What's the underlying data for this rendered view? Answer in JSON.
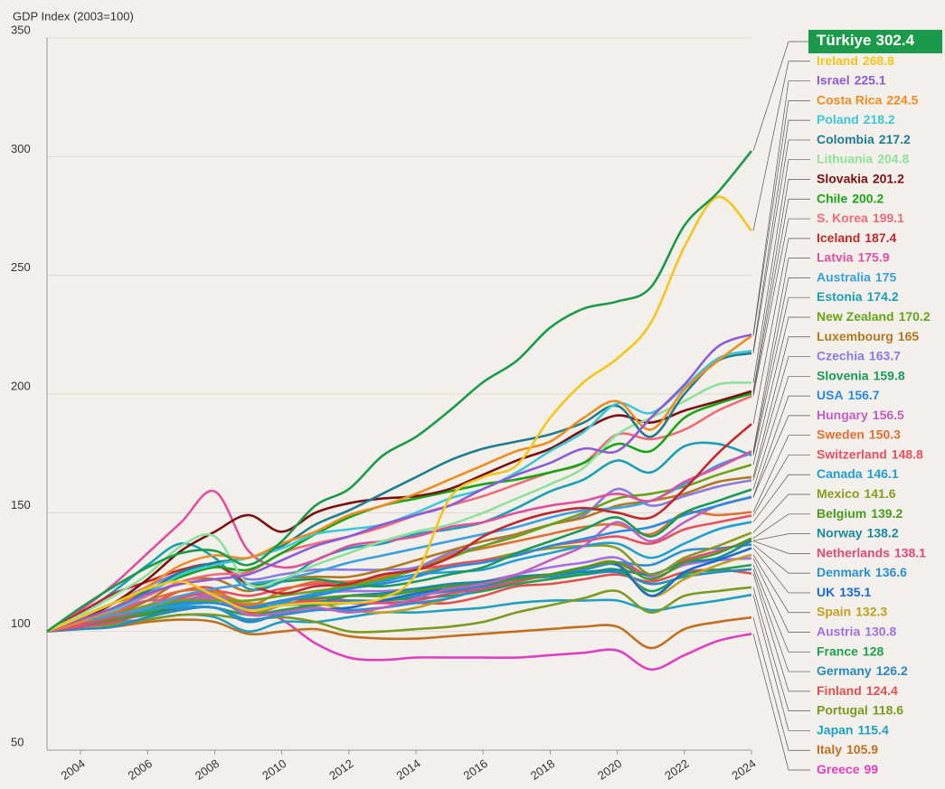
{
  "chart_data": {
    "type": "line",
    "y_axis_label": "GDP Index (2003=100)",
    "x": [
      2003,
      2004,
      2005,
      2006,
      2007,
      2008,
      2009,
      2010,
      2011,
      2012,
      2013,
      2014,
      2015,
      2016,
      2017,
      2018,
      2019,
      2020,
      2021,
      2022,
      2023,
      2024
    ],
    "xlim": [
      2003,
      2024
    ],
    "xticks": [
      2004,
      2006,
      2008,
      2010,
      2012,
      2014,
      2016,
      2018,
      2020,
      2022,
      2024
    ],
    "ylim": [
      50,
      350
    ],
    "yticks": [
      50,
      100,
      150,
      200,
      250,
      300,
      350
    ],
    "grid": true,
    "series": [
      {
        "name": "Türkiye",
        "color": "#1a9a4a",
        "values": [
          100,
          110,
          119,
          127,
          133,
          134,
          128,
          138,
          153,
          160,
          174,
          182,
          193,
          205,
          214,
          228,
          236,
          239,
          245,
          271,
          285,
          302.4
        ]
      },
      {
        "name": "Ireland",
        "color": "#f5c518",
        "values": [
          100,
          106,
          112,
          118,
          121,
          115,
          109,
          111,
          112,
          112,
          114,
          124,
          156,
          165,
          170,
          190,
          205,
          215,
          230,
          262,
          283,
          268.8
        ]
      },
      {
        "name": "Israel",
        "color": "#8e5bd6",
        "values": [
          100,
          105,
          110,
          116,
          120,
          122,
          124,
          130,
          136,
          140,
          145,
          149,
          153,
          160,
          166,
          171,
          177,
          176,
          190,
          204,
          220,
          225.1
        ]
      },
      {
        "name": "Costa Rica",
        "color": "#f08c1e",
        "values": [
          100,
          104,
          110,
          119,
          128,
          132,
          131,
          137,
          142,
          149,
          153,
          158,
          164,
          170,
          176,
          180,
          190,
          197,
          185,
          202,
          214,
          224.5
        ]
      },
      {
        "name": "Poland",
        "color": "#3dc6d6",
        "values": [
          100,
          105,
          109,
          116,
          124,
          128,
          131,
          135,
          141,
          143,
          145,
          150,
          156,
          160,
          167,
          176,
          184,
          196,
          192,
          203,
          215,
          218.2
        ]
      },
      {
        "name": "Colombia",
        "color": "#1f7d8f",
        "values": [
          100,
          105,
          110,
          117,
          125,
          129,
          131,
          136,
          145,
          151,
          158,
          165,
          172,
          177,
          180,
          183,
          188,
          195,
          182,
          200,
          214,
          217.2
        ]
      },
      {
        "name": "Lithuania",
        "color": "#8ee09a",
        "values": [
          100,
          107,
          115,
          124,
          136,
          140,
          120,
          122,
          128,
          133,
          138,
          142,
          145,
          150,
          156,
          162,
          169,
          183,
          190,
          197,
          204,
          204.8
        ]
      },
      {
        "name": "Slovakia",
        "color": "#7a1010",
        "values": [
          100,
          105,
          112,
          122,
          134,
          142,
          149,
          142,
          150,
          154,
          156,
          157,
          160,
          166,
          172,
          177,
          185,
          191,
          188,
          193,
          197,
          201.2
        ]
      },
      {
        "name": "Chile",
        "color": "#16a616",
        "values": [
          100,
          106,
          112,
          117,
          123,
          127,
          126,
          133,
          141,
          148,
          153,
          156,
          159,
          162,
          164,
          167,
          171,
          179,
          176,
          190,
          196,
          200.2
        ]
      },
      {
        "name": "S. Korea",
        "color": "#f06a7a",
        "values": [
          100,
          105,
          109,
          115,
          121,
          124,
          125,
          133,
          137,
          140,
          144,
          149,
          153,
          157,
          162,
          167,
          171,
          183,
          181,
          185,
          193,
          199.1
        ]
      },
      {
        "name": "Iceland",
        "color": "#c0282e",
        "values": [
          100,
          108,
          116,
          121,
          126,
          128,
          120,
          116,
          119,
          120,
          124,
          126,
          131,
          140,
          146,
          150,
          152,
          150,
          148,
          160,
          175,
          187.4
        ]
      },
      {
        "name": "Latvia",
        "color": "#e0509e",
        "values": [
          100,
          109,
          120,
          133,
          146,
          159,
          134,
          127,
          130,
          136,
          138,
          140,
          144,
          146,
          150,
          153,
          155,
          158,
          155,
          163,
          169,
          175.9
        ]
      },
      {
        "name": "Australia",
        "color": "#3aa0e0",
        "values": [
          100,
          104,
          107,
          110,
          115,
          118,
          120,
          122,
          125,
          129,
          132,
          135,
          138,
          141,
          144,
          148,
          151,
          152,
          155,
          162,
          170,
          175
        ]
      },
      {
        "name": "Estonia",
        "color": "#1a9fb5",
        "values": [
          100,
          107,
          117,
          128,
          137,
          131,
          118,
          121,
          130,
          135,
          137,
          141,
          143,
          146,
          152,
          159,
          164,
          172,
          167,
          178,
          179,
          174.2
        ]
      },
      {
        "name": "New Zealand",
        "color": "#6aa31a",
        "values": [
          100,
          104,
          107,
          110,
          113,
          113,
          113,
          115,
          117,
          119,
          122,
          126,
          131,
          136,
          140,
          145,
          150,
          156,
          158,
          161,
          166,
          170.2
        ]
      },
      {
        "name": "Luxembourg",
        "color": "#b07820",
        "values": [
          100,
          104,
          107,
          113,
          121,
          122,
          117,
          122,
          123,
          123,
          126,
          130,
          134,
          138,
          141,
          145,
          148,
          153,
          155,
          158,
          163,
          165
        ]
      },
      {
        "name": "Czechia",
        "color": "#8a7be0",
        "values": [
          100,
          105,
          112,
          119,
          125,
          128,
          122,
          124,
          126,
          126,
          126,
          127,
          133,
          136,
          141,
          145,
          149,
          160,
          153,
          157,
          161,
          163.7
        ]
      },
      {
        "name": "Slovenia",
        "color": "#1a9a5a",
        "values": [
          100,
          105,
          110,
          116,
          124,
          128,
          120,
          121,
          122,
          120,
          119,
          121,
          124,
          127,
          133,
          138,
          143,
          148,
          140,
          150,
          155,
          159.8
        ]
      },
      {
        "name": "USA",
        "color": "#2a8ae0",
        "values": [
          100,
          104,
          107,
          110,
          112,
          112,
          110,
          113,
          115,
          118,
          120,
          123,
          127,
          129,
          132,
          136,
          139,
          142,
          144,
          149,
          153,
          156.7
        ]
      },
      {
        "name": "Hungary",
        "color": "#c060c0",
        "values": [
          100,
          105,
          109,
          113,
          113,
          114,
          107,
          108,
          110,
          108,
          110,
          114,
          118,
          120,
          124,
          130,
          136,
          146,
          138,
          146,
          153,
          156.5
        ]
      },
      {
        "name": "Sweden",
        "color": "#e07030",
        "values": [
          100,
          105,
          108,
          113,
          117,
          117,
          111,
          117,
          121,
          121,
          123,
          126,
          132,
          135,
          138,
          141,
          144,
          145,
          141,
          150,
          149,
          150.3
        ]
      },
      {
        "name": "Switzerland",
        "color": "#e85060",
        "values": [
          100,
          103,
          106,
          110,
          114,
          117,
          115,
          118,
          120,
          121,
          123,
          126,
          128,
          130,
          132,
          136,
          138,
          140,
          137,
          143,
          146,
          148.8
        ]
      },
      {
        "name": "Canada",
        "color": "#20a0d0",
        "values": [
          100,
          103,
          106,
          109,
          111,
          112,
          109,
          112,
          116,
          118,
          121,
          124,
          125,
          126,
          130,
          133,
          136,
          137,
          131,
          137,
          143,
          146.1
        ]
      },
      {
        "name": "Mexico",
        "color": "#8a9a20",
        "values": [
          100,
          104,
          106,
          111,
          113,
          114,
          107,
          112,
          116,
          120,
          122,
          124,
          128,
          130,
          133,
          135,
          136,
          135,
          124,
          131,
          136,
          141.6
        ]
      },
      {
        "name": "Belgium",
        "color": "#4a9a20",
        "values": [
          100,
          103,
          105,
          108,
          111,
          112,
          110,
          113,
          114,
          115,
          115,
          117,
          119,
          120,
          122,
          124,
          127,
          129,
          122,
          129,
          133,
          139.2
        ]
      },
      {
        "name": "Norway",
        "color": "#1a8aa0",
        "values": [
          100,
          104,
          107,
          109,
          112,
          112,
          110,
          111,
          112,
          115,
          116,
          118,
          120,
          121,
          123,
          124,
          125,
          126,
          124,
          129,
          131,
          138.2
        ]
      },
      {
        "name": "Netherlands",
        "color": "#e04a7a",
        "values": [
          100,
          102,
          104,
          108,
          112,
          114,
          110,
          111,
          113,
          112,
          112,
          113,
          116,
          118,
          121,
          124,
          127,
          129,
          124,
          130,
          134,
          138.1
        ]
      },
      {
        "name": "Denmark",
        "color": "#2a90d0",
        "values": [
          100,
          103,
          105,
          109,
          110,
          110,
          105,
          107,
          109,
          109,
          110,
          112,
          114,
          118,
          121,
          124,
          126,
          129,
          128,
          134,
          135,
          136.6
        ]
      },
      {
        "name": "UK",
        "color": "#1a6ad0",
        "values": [
          100,
          102,
          105,
          108,
          110,
          110,
          105,
          107,
          109,
          110,
          113,
          116,
          118,
          120,
          123,
          124,
          126,
          128,
          115,
          125,
          130,
          135.1
        ]
      },
      {
        "name": "Spain",
        "color": "#c0a020",
        "values": [
          100,
          103,
          107,
          111,
          115,
          116,
          112,
          112,
          112,
          109,
          108,
          110,
          114,
          118,
          121,
          124,
          127,
          129,
          115,
          122,
          128,
          132.3
        ]
      },
      {
        "name": "Austria",
        "color": "#a070e0",
        "values": [
          100,
          103,
          105,
          109,
          113,
          115,
          111,
          113,
          116,
          117,
          117,
          118,
          119,
          121,
          124,
          127,
          129,
          131,
          123,
          128,
          130,
          130.8
        ]
      },
      {
        "name": "France",
        "color": "#20a050",
        "values": [
          100,
          103,
          105,
          107,
          110,
          110,
          107,
          109,
          111,
          112,
          113,
          114,
          115,
          117,
          120,
          122,
          124,
          126,
          117,
          124,
          126,
          128
        ]
      },
      {
        "name": "Germany",
        "color": "#2a8ac0",
        "values": [
          100,
          101,
          102,
          106,
          109,
          110,
          104,
          108,
          112,
          113,
          113,
          115,
          117,
          119,
          122,
          123,
          124,
          125,
          120,
          123,
          125,
          126.2
        ]
      },
      {
        "name": "Finland",
        "color": "#e05050",
        "values": [
          100,
          104,
          107,
          111,
          117,
          118,
          108,
          111,
          114,
          113,
          112,
          112,
          112,
          115,
          119,
          120,
          122,
          124,
          121,
          125,
          126,
          124.4
        ]
      },
      {
        "name": "Portugal",
        "color": "#7a9a20",
        "values": [
          100,
          102,
          103,
          105,
          107,
          107,
          105,
          106,
          104,
          100,
          100,
          101,
          102,
          104,
          108,
          111,
          114,
          117,
          108,
          115,
          117,
          118.6
        ]
      },
      {
        "name": "Japan",
        "color": "#20a0c0",
        "values": [
          100,
          102,
          104,
          105,
          107,
          106,
          100,
          104,
          104,
          106,
          108,
          108,
          109,
          110,
          112,
          113,
          113,
          113,
          109,
          111,
          113,
          115.4
        ]
      },
      {
        "name": "Italy",
        "color": "#c07020",
        "values": [
          100,
          101,
          102,
          104,
          105,
          104,
          99,
          100,
          101,
          98,
          97,
          97,
          98,
          99,
          100,
          101,
          102,
          102,
          93,
          101,
          104,
          105.9
        ]
      },
      {
        "name": "Greece",
        "color": "#e040c0",
        "values": [
          100,
          105,
          105,
          111,
          115,
          115,
          111,
          105,
          95,
          89,
          88,
          89,
          89,
          89,
          89,
          90,
          91,
          92,
          84,
          90,
          96,
          99
        ]
      }
    ]
  }
}
